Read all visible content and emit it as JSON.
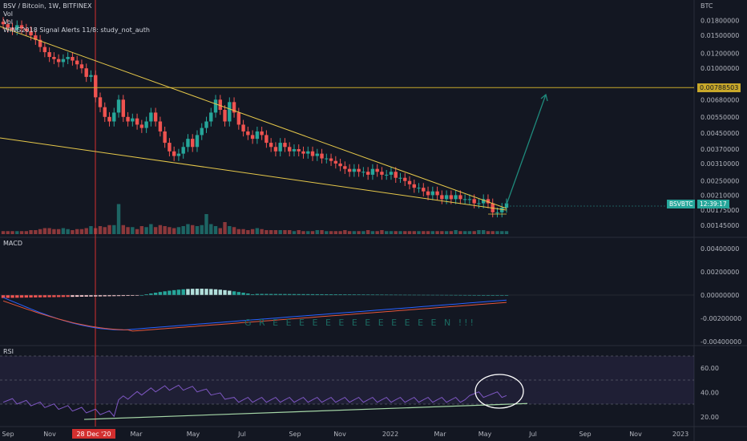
{
  "header": {
    "symbol_line": "BSV / Bitcoin, 1W, BITFINEX",
    "vol1": "Vol",
    "vol2": "Vol",
    "indicator": "WING2018 Signal Alerts 11/8: study_not_auth"
  },
  "panes": {
    "macd_label": "MACD",
    "rsi_label": "RSI",
    "annotation": "G R E E E E E E E E E   E E E E N !!!"
  },
  "price_axis": {
    "currency": "BTC",
    "ticks": [
      "0.01800000",
      "0.01500000",
      "0.01200000",
      "0.01000000",
      "0.00680000",
      "0.00550000",
      "0.00450000",
      "0.00370000",
      "0.00310000",
      "0.00250000",
      "0.00210000",
      "0.00175000",
      "0.00145000"
    ],
    "resistance_label": "0.00788503",
    "symbol_tag": "BSVBTC",
    "countdown": "12:39:17"
  },
  "macd_axis": {
    "ticks": [
      "0.00400000",
      "0.00200000",
      "0.00000000",
      "-0.00200000",
      "-0.00400000"
    ]
  },
  "rsi_axis": {
    "ticks": [
      "60.00",
      "40.00",
      "20.00"
    ]
  },
  "time_axis": {
    "labels": [
      "Sep",
      "Nov",
      "28 Dec '20",
      "Mar",
      "May",
      "Jul",
      "Sep",
      "Nov",
      "2022",
      "Mar",
      "May",
      "Jul",
      "Sep",
      "Nov",
      "2023"
    ]
  },
  "colors": {
    "up": "#26a69a",
    "down": "#ef5350",
    "trend": "#e6c84a",
    "resistance": "#c8a82a",
    "crosshair": "#d32f2f",
    "arrow": "#1f8a7c",
    "rsi": "#7e57c2",
    "macd": "#2962ff",
    "signal": "#e5573c"
  },
  "chart_data": {
    "type": "candlestick",
    "symbol": "BSVBTC",
    "exchange": "BITFINEX",
    "interval": "1W",
    "price_scale": "log",
    "price_range": [
      0.0013,
      0.021
    ],
    "resistance_level": 0.00788503,
    "last_price_label": "BSVBTC",
    "closes_weekly": [
      0.0172,
      0.0165,
      0.016,
      0.017,
      0.0163,
      0.0158,
      0.015,
      0.0142,
      0.013,
      0.0122,
      0.0115,
      0.0112,
      0.0108,
      0.0112,
      0.0115,
      0.011,
      0.0105,
      0.01,
      0.009,
      0.0092,
      0.007,
      0.0062,
      0.0055,
      0.0052,
      0.0058,
      0.0068,
      0.0055,
      0.0052,
      0.0054,
      0.005,
      0.0048,
      0.0052,
      0.0058,
      0.0052,
      0.0046,
      0.004,
      0.0036,
      0.0034,
      0.0035,
      0.0038,
      0.0042,
      0.0038,
      0.0044,
      0.0048,
      0.0052,
      0.0058,
      0.0068,
      0.006,
      0.0052,
      0.0066,
      0.0058,
      0.005,
      0.0046,
      0.0044,
      0.0042,
      0.0046,
      0.0044,
      0.004,
      0.0038,
      0.0036,
      0.004,
      0.0038,
      0.0036,
      0.0037,
      0.0036,
      0.0035,
      0.0036,
      0.0034,
      0.0035,
      0.0033,
      0.0033,
      0.0032,
      0.0031,
      0.003,
      0.0029,
      0.0028,
      0.0029,
      0.0028,
      0.0028,
      0.0027,
      0.0029,
      0.0028,
      0.0027,
      0.0027,
      0.0028,
      0.0026,
      0.0026,
      0.0025,
      0.0024,
      0.0023,
      0.0023,
      0.0022,
      0.0021,
      0.0022,
      0.0021,
      0.002,
      0.0021,
      0.002,
      0.0021,
      0.002,
      0.002,
      0.002,
      0.0019,
      0.0019,
      0.002,
      0.0019,
      0.0017,
      0.0017,
      0.0018,
      0.0019
    ],
    "volume_weekly": [
      3,
      3,
      3,
      3,
      3,
      3,
      4,
      4,
      5,
      6,
      6,
      5,
      5,
      6,
      5,
      4,
      5,
      5,
      6,
      8,
      6,
      8,
      7,
      9,
      9,
      30,
      9,
      7,
      7,
      5,
      8,
      7,
      10,
      7,
      9,
      8,
      7,
      6,
      7,
      8,
      10,
      9,
      8,
      9,
      20,
      10,
      8,
      6,
      12,
      8,
      7,
      5,
      5,
      4,
      5,
      6,
      5,
      4,
      4,
      4,
      4,
      4,
      4,
      3,
      4,
      3,
      3,
      3,
      4,
      4,
      3,
      3,
      3,
      3,
      4,
      3,
      3,
      3,
      3,
      4,
      3,
      3,
      4,
      3,
      3,
      3,
      3,
      3,
      3,
      3,
      3,
      3,
      3,
      3,
      3,
      3,
      3,
      3,
      4,
      3,
      3,
      3,
      3,
      4,
      4,
      3,
      3,
      3,
      3,
      3
    ],
    "rsi_trendline": {
      "from_label": "28 Dec '20",
      "from_value": 18,
      "to_label": "Jun 2022",
      "to_value": 31
    },
    "rsi_ticks": [
      20,
      40,
      60
    ],
    "macd_ticks": [
      -0.004,
      -0.002,
      0.0,
      0.002,
      0.004
    ],
    "x_axis_labels": [
      "Sep",
      "Nov",
      "28 Dec '20",
      "Mar",
      "May",
      "Jul",
      "Sep",
      "Nov",
      "2022",
      "Mar",
      "May",
      "Jul",
      "Sep",
      "Nov",
      "2023"
    ]
  }
}
